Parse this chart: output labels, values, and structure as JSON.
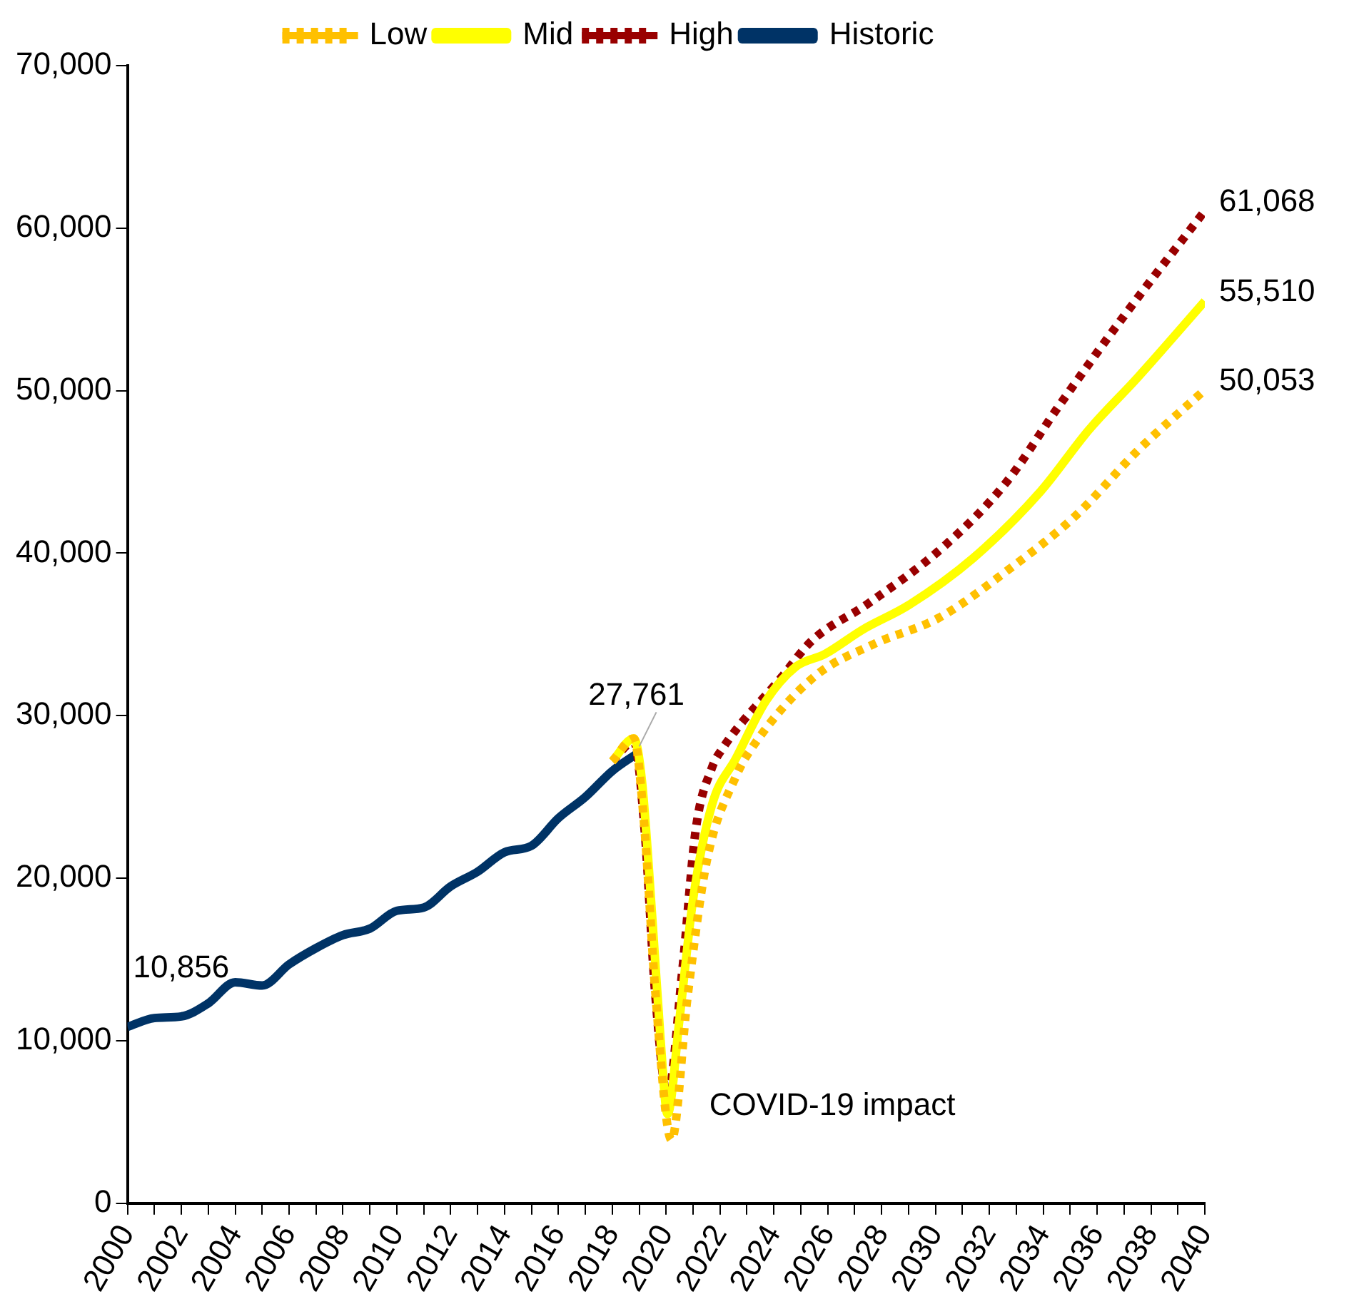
{
  "chart_data": {
    "type": "line",
    "xlim": [
      2000,
      2040
    ],
    "xticks": [
      2000,
      {
        "value": 2001,
        "label": null
      },
      2002,
      {
        "value": 2003,
        "label": null
      },
      2004,
      {
        "value": 2005,
        "label": null
      },
      2006,
      {
        "value": 2007,
        "label": null
      },
      2008,
      {
        "value": 2009,
        "label": null
      },
      2010,
      {
        "value": 2011,
        "label": null
      },
      2012,
      {
        "value": 2013,
        "label": null
      },
      2014,
      {
        "value": 2015,
        "label": null
      },
      2016,
      {
        "value": 2017,
        "label": null
      },
      2018,
      {
        "value": 2019,
        "label": null
      },
      2020,
      {
        "value": 2021,
        "label": null
      },
      2022,
      {
        "value": 2023,
        "label": null
      },
      2024,
      {
        "value": 2025,
        "label": null
      },
      2026,
      {
        "value": 2027,
        "label": null
      },
      2028,
      {
        "value": 2029,
        "label": null
      },
      2030,
      {
        "value": 2031,
        "label": null
      },
      2032,
      {
        "value": 2033,
        "label": null
      },
      2034,
      {
        "value": 2035,
        "label": null
      },
      2036,
      {
        "value": 2037,
        "label": null
      },
      2038,
      {
        "value": 2039,
        "label": null
      },
      2040
    ],
    "ylim": [
      0,
      70000
    ],
    "yticks": [
      {
        "value": 0,
        "label": "0"
      },
      {
        "value": 10000,
        "label": "10,000"
      },
      {
        "value": 20000,
        "label": "20,000"
      },
      {
        "value": 30000,
        "label": "30,000"
      },
      {
        "value": 40000,
        "label": "40,000"
      },
      {
        "value": 50000,
        "label": "50,000"
      },
      {
        "value": 60000,
        "label": "60,000"
      },
      {
        "value": 70000,
        "label": "70,000"
      }
    ],
    "grid": false,
    "legend": "top",
    "marker": "none",
    "series": [
      {
        "name": "Low",
        "color": "#ffc000",
        "line_style": "dotted",
        "x": [
          2018.0,
          2018.8,
          2019.2,
          2019.6,
          2020.2,
          2020.8,
          2021.5,
          2022.6,
          2023.3,
          2025.5,
          2027.7,
          2030.1,
          2032.8,
          2035.2,
          2037.5,
          2040
        ],
        "values": [
          27200,
          28600,
          23000,
          13000,
          3900,
          12800,
          21000,
          26300,
          28300,
          32400,
          34400,
          36000,
          39100,
          42300,
          46300,
          50053
        ],
        "value_labels": [
          null,
          null,
          null,
          null,
          null,
          null,
          null,
          null,
          null,
          null,
          null,
          null,
          null,
          null,
          null,
          "50,053"
        ]
      },
      {
        "name": "Mid",
        "color": "#ffff00",
        "line_style": "solid",
        "x": [
          2018.0,
          2018.8,
          2019.1,
          2019.5,
          2019.8,
          2020.05,
          2020.5,
          2021.0,
          2021.7,
          2022.6,
          2023.7,
          2024.8,
          2025.9,
          2027.3,
          2029.0,
          2031.4,
          2033.9,
          2035.7,
          2037.5,
          2040
        ],
        "values": [
          27200,
          28600,
          26000,
          17200,
          9900,
          5500,
          11400,
          18700,
          24500,
          27400,
          30900,
          33000,
          33800,
          35300,
          36800,
          39700,
          43800,
          47600,
          50800,
          55510
        ],
        "value_labels": [
          null,
          null,
          null,
          null,
          null,
          null,
          null,
          null,
          null,
          null,
          null,
          null,
          null,
          null,
          null,
          null,
          null,
          null,
          null,
          "55,510"
        ]
      },
      {
        "name": "High",
        "color": "#990000",
        "line_style": "dotted",
        "x": [
          2018.0,
          2018.8,
          2019.2,
          2019.6,
          2020.05,
          2020.6,
          2021.1,
          2021.7,
          2022.1,
          2024.3,
          2025.4,
          2027.5,
          2030.3,
          2032.6,
          2034.6,
          2037.0,
          2040
        ],
        "values": [
          27200,
          28400,
          23000,
          12800,
          6700,
          14300,
          23000,
          26800,
          28000,
          32400,
          34600,
          36900,
          40400,
          44300,
          49100,
          54600,
          61068
        ],
        "value_labels": [
          null,
          null,
          null,
          null,
          null,
          null,
          null,
          null,
          null,
          null,
          null,
          null,
          null,
          null,
          null,
          null,
          "61,068"
        ]
      },
      {
        "name": "Historic",
        "color": "#003366",
        "line_style": "solid",
        "x": [
          2000,
          2001,
          2002,
          2003,
          2004,
          2005,
          2006,
          2007,
          2008,
          2009,
          2010,
          2011,
          2012,
          2013,
          2014,
          2015,
          2016,
          2017,
          2018,
          2019
        ],
        "values": [
          10856,
          11400,
          11500,
          12300,
          13600,
          13400,
          14700,
          15700,
          16500,
          16900,
          18000,
          18200,
          19500,
          20400,
          21600,
          22000,
          23700,
          25000,
          26600,
          27761
        ],
        "value_labels": [
          "10,856",
          null,
          null,
          null,
          null,
          null,
          null,
          null,
          null,
          null,
          null,
          null,
          null,
          null,
          null,
          null,
          null,
          null,
          null,
          "27,761"
        ]
      }
    ],
    "annotations": [
      "COVID-19 impact"
    ]
  }
}
